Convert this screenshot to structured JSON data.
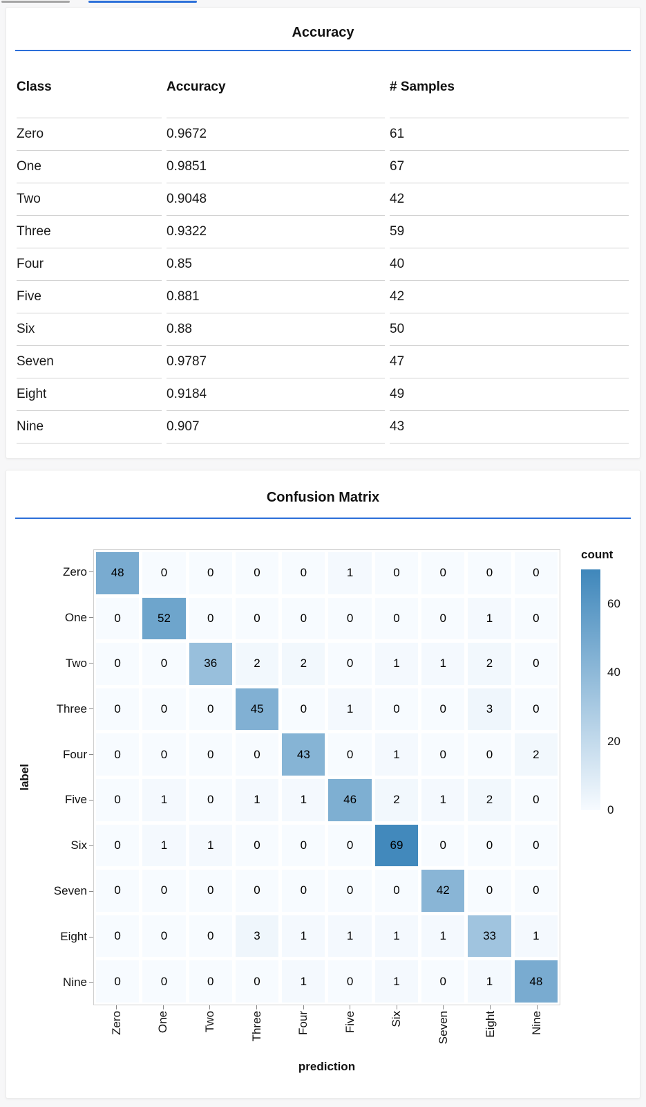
{
  "colors": {
    "accent_blue": "#2b6fd9",
    "scrollbar_gray": "#a5a5a5",
    "heatmap_low": "#f7fbff",
    "heatmap_high": "#3f87bb"
  },
  "chart_data": [
    {
      "type": "table",
      "title": "Accuracy",
      "columns": [
        "Class",
        "Accuracy",
        "# Samples"
      ],
      "rows": [
        [
          "Zero",
          "0.9672",
          "61"
        ],
        [
          "One",
          "0.9851",
          "67"
        ],
        [
          "Two",
          "0.9048",
          "42"
        ],
        [
          "Three",
          "0.9322",
          "59"
        ],
        [
          "Four",
          "0.85",
          "40"
        ],
        [
          "Five",
          "0.881",
          "42"
        ],
        [
          "Six",
          "0.88",
          "50"
        ],
        [
          "Seven",
          "0.9787",
          "47"
        ],
        [
          "Eight",
          "0.9184",
          "49"
        ],
        [
          "Nine",
          "0.907",
          "43"
        ]
      ]
    },
    {
      "type": "heatmap",
      "title": "Confusion Matrix",
      "xlabel": "prediction",
      "ylabel": "label",
      "x_categories": [
        "Zero",
        "One",
        "Two",
        "Three",
        "Four",
        "Five",
        "Six",
        "Seven",
        "Eight",
        "Nine"
      ],
      "y_categories": [
        "Zero",
        "One",
        "Two",
        "Three",
        "Four",
        "Five",
        "Six",
        "Seven",
        "Eight",
        "Nine"
      ],
      "values": [
        [
          48,
          0,
          0,
          0,
          0,
          1,
          0,
          0,
          0,
          0
        ],
        [
          0,
          52,
          0,
          0,
          0,
          0,
          0,
          0,
          1,
          0
        ],
        [
          0,
          0,
          36,
          2,
          2,
          0,
          1,
          1,
          2,
          0
        ],
        [
          0,
          0,
          0,
          45,
          0,
          1,
          0,
          0,
          3,
          0
        ],
        [
          0,
          0,
          0,
          0,
          43,
          0,
          1,
          0,
          0,
          2
        ],
        [
          0,
          1,
          0,
          1,
          1,
          46,
          2,
          1,
          2,
          0
        ],
        [
          0,
          1,
          1,
          0,
          0,
          0,
          69,
          0,
          0,
          0
        ],
        [
          0,
          0,
          0,
          0,
          0,
          0,
          0,
          42,
          0,
          0
        ],
        [
          0,
          0,
          0,
          3,
          1,
          1,
          1,
          1,
          33,
          1
        ],
        [
          0,
          0,
          0,
          0,
          1,
          0,
          1,
          0,
          1,
          48
        ]
      ],
      "color_domain": [
        0,
        70
      ],
      "legend": {
        "title": "count",
        "ticks": [
          60,
          40,
          20,
          0
        ],
        "position": "right"
      },
      "grid": false
    }
  ]
}
